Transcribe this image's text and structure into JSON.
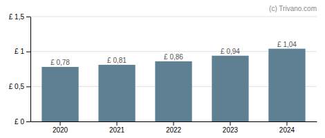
{
  "chart_data": {
    "type": "bar",
    "categories": [
      "2020",
      "2021",
      "2022",
      "2023",
      "2024"
    ],
    "values": [
      0.78,
      0.81,
      0.86,
      0.94,
      1.04
    ],
    "value_labels": [
      "£ 0,78",
      "£ 0,81",
      "£ 0,86",
      "£ 0,94",
      "£ 1,04"
    ],
    "data_labels": true,
    "color": "#5f7f93",
    "ylim": [
      0,
      1.5
    ],
    "yticks": [
      {
        "value": 0,
        "label": "£ 0"
      },
      {
        "value": 0.5,
        "label": "£ 0,5"
      },
      {
        "value": 1.0,
        "label": "£ 1"
      },
      {
        "value": 1.5,
        "label": "£ 1,5"
      }
    ],
    "grid": true,
    "annotations": [
      "(c) Trivano.com"
    ]
  }
}
